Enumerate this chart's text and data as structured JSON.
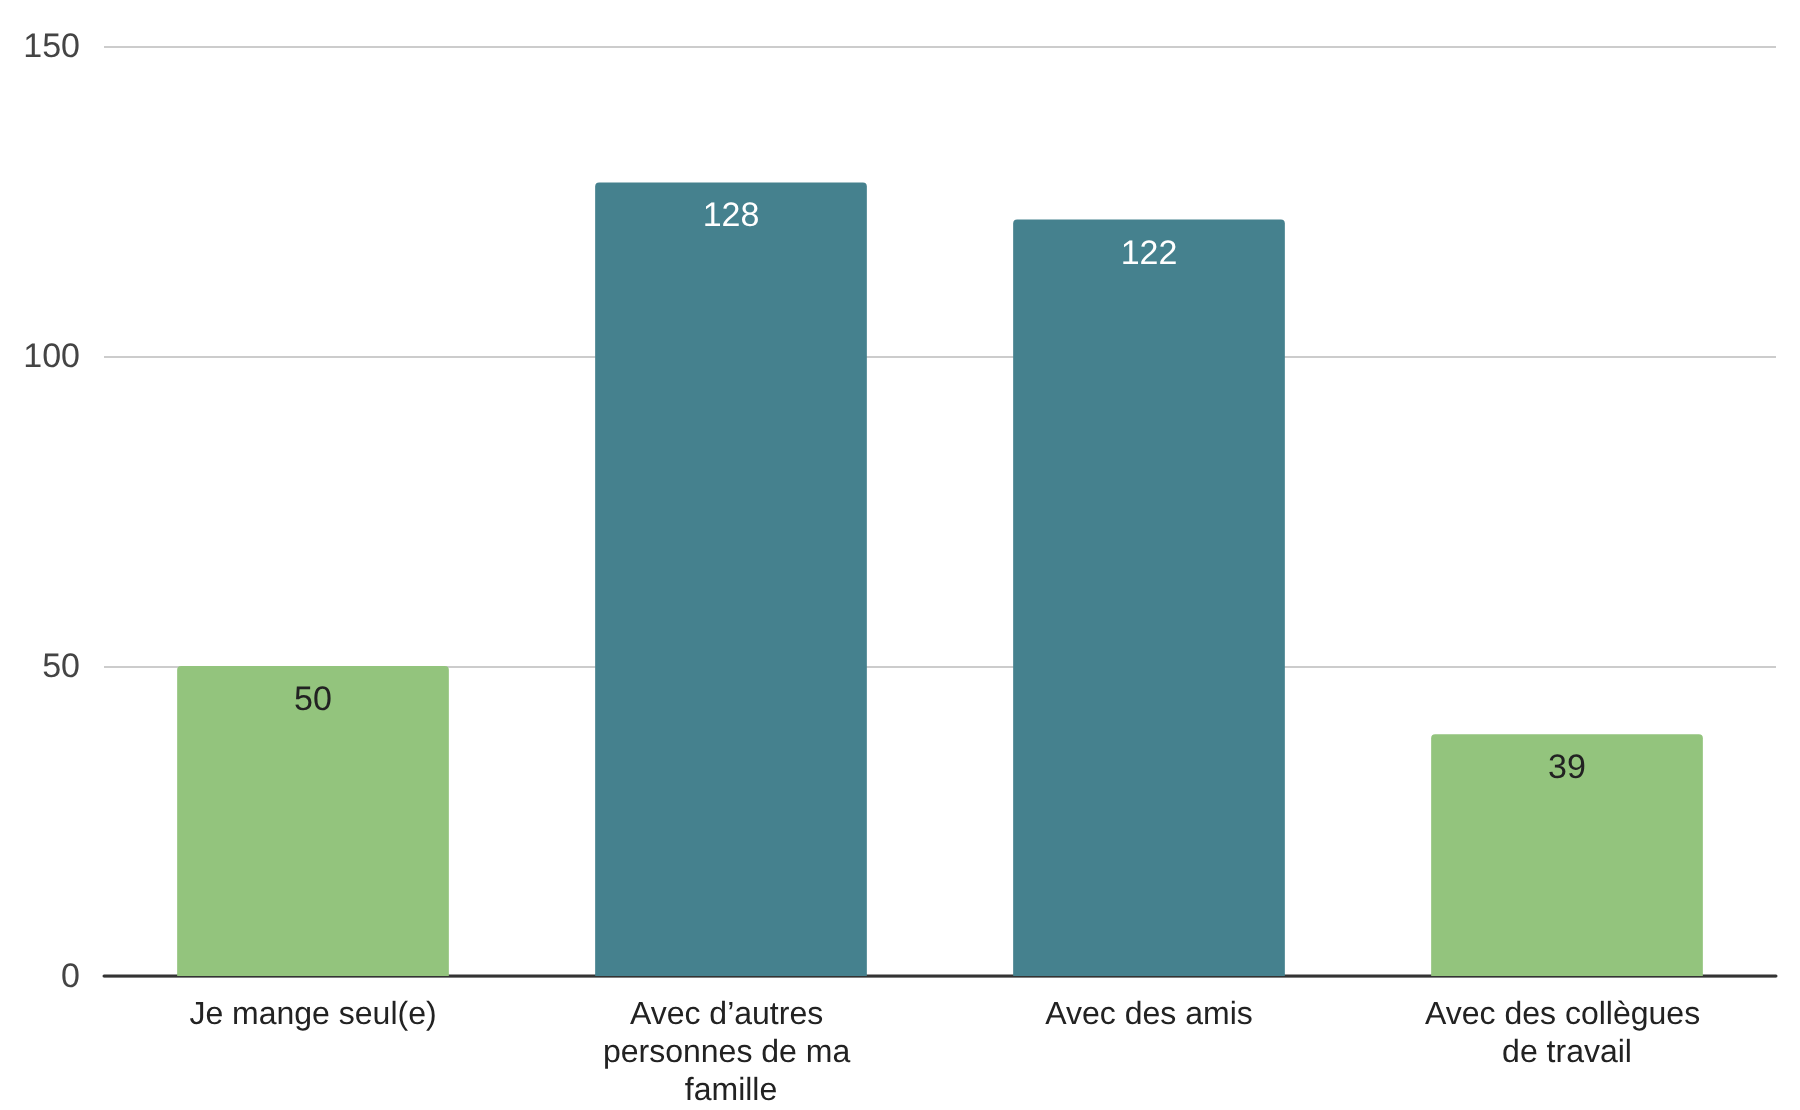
{
  "chart_data": {
    "type": "bar",
    "categories": [
      "Je mange seul(e)",
      "Avec d’autres personnes de ma famille",
      "Avec des amis",
      "Avec des collègues de travail"
    ],
    "values": [
      50,
      128,
      122,
      39
    ],
    "colors": [
      "#93c47d",
      "#45818e",
      "#45818e",
      "#93c47d"
    ],
    "ylim": [
      0,
      150
    ],
    "yticks": [
      0,
      50,
      100,
      150
    ],
    "grid": "y",
    "data_labels": true
  }
}
